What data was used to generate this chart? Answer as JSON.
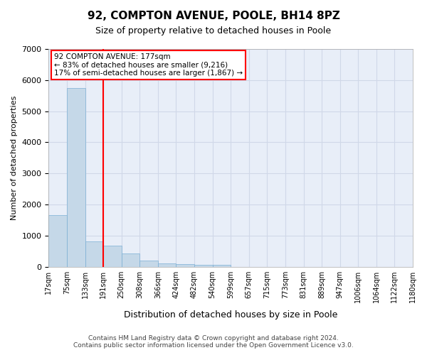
{
  "title1": "92, COMPTON AVENUE, POOLE, BH14 8PZ",
  "title2": "Size of property relative to detached houses in Poole",
  "xlabel": "Distribution of detached houses by size in Poole",
  "ylabel": "Number of detached properties",
  "bin_labels": [
    "17sqm",
    "75sqm",
    "133sqm",
    "191sqm",
    "250sqm",
    "308sqm",
    "366sqm",
    "424sqm",
    "482sqm",
    "540sqm",
    "599sqm",
    "657sqm",
    "715sqm",
    "773sqm",
    "831sqm",
    "889sqm",
    "947sqm",
    "1006sqm",
    "1064sqm",
    "1122sqm",
    "1180sqm"
  ],
  "bar_values": [
    1650,
    5750,
    820,
    680,
    430,
    200,
    110,
    75,
    50,
    60,
    0,
    0,
    0,
    0,
    0,
    0,
    0,
    0,
    0,
    0
  ],
  "bar_color": "#c5d8e8",
  "bar_edge_color": "#7bafd4",
  "annotation_line1": "92 COMPTON AVENUE: 177sqm",
  "annotation_line2": "← 83% of detached houses are smaller (9,216)",
  "annotation_line3": "17% of semi-detached houses are larger (1,867) →",
  "ylim": [
    0,
    7000
  ],
  "yticks": [
    0,
    1000,
    2000,
    3000,
    4000,
    5000,
    6000,
    7000
  ],
  "grid_color": "#d0d8e8",
  "plot_bg_color": "#e8eef8",
  "footer_line1": "Contains HM Land Registry data © Crown copyright and database right 2024.",
  "footer_line2": "Contains public sector information licensed under the Open Government Licence v3.0."
}
